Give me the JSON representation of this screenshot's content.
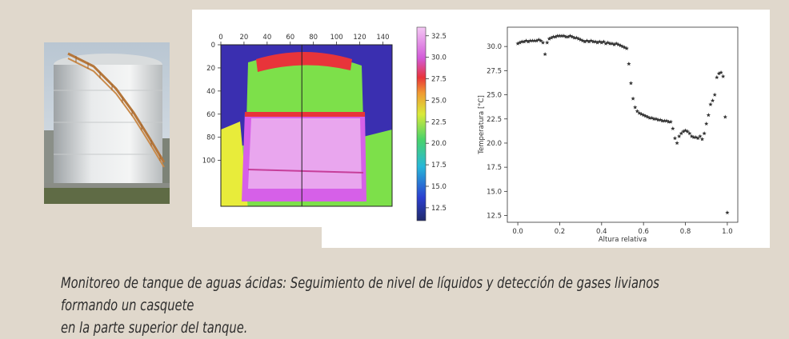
{
  "caption": {
    "line1": "Monitoreo de tanque de aguas ácidas: Seguimiento de nivel de líquidos y detección de gases livianos formando un casquete",
    "line2": "en la parte superior del tanque."
  },
  "thermal_image": {
    "x_ticks": [
      0,
      20,
      40,
      60,
      80,
      100,
      120,
      140
    ],
    "y_ticks": [
      0,
      20,
      40,
      60,
      80,
      100
    ],
    "colorbar_ticks": [
      12.5,
      15.0,
      17.5,
      20.0,
      22.5,
      25.0,
      27.5,
      30.0,
      32.5
    ],
    "colorbar_range": [
      11.0,
      33.5
    ],
    "cursor_line_x": 70,
    "colors": {
      "cold": "#3a2fb0",
      "green": "#7de04a",
      "yellow": "#e8ec3a",
      "red": "#e8343a",
      "magenta": "#d660e8",
      "pink": "#e9a6ee"
    }
  },
  "chart_data": {
    "type": "scatter",
    "xlabel": "Altura relativa",
    "ylabel": "Temperatura [°C]",
    "xlim": [
      -0.05,
      1.05
    ],
    "ylim": [
      11.8,
      32.0
    ],
    "x_ticks": [
      "0.0",
      "0.2",
      "0.4",
      "0.6",
      "0.8",
      "1.0"
    ],
    "y_ticks": [
      "12.5",
      "15.0",
      "17.5",
      "20.0",
      "22.5",
      "25.0",
      "27.5",
      "30.0"
    ],
    "marker": "star",
    "color": "#333333",
    "x": [
      0.0,
      0.01,
      0.02,
      0.03,
      0.04,
      0.05,
      0.06,
      0.07,
      0.08,
      0.09,
      0.1,
      0.11,
      0.12,
      0.13,
      0.14,
      0.15,
      0.16,
      0.17,
      0.18,
      0.19,
      0.2,
      0.21,
      0.22,
      0.23,
      0.24,
      0.25,
      0.26,
      0.27,
      0.28,
      0.29,
      0.3,
      0.31,
      0.32,
      0.33,
      0.34,
      0.35,
      0.36,
      0.37,
      0.38,
      0.39,
      0.4,
      0.41,
      0.42,
      0.43,
      0.44,
      0.45,
      0.46,
      0.47,
      0.48,
      0.49,
      0.5,
      0.51,
      0.52,
      0.53,
      0.54,
      0.55,
      0.56,
      0.57,
      0.58,
      0.59,
      0.6,
      0.61,
      0.62,
      0.63,
      0.64,
      0.65,
      0.66,
      0.67,
      0.68,
      0.69,
      0.7,
      0.71,
      0.72,
      0.73,
      0.74,
      0.75,
      0.76,
      0.77,
      0.78,
      0.79,
      0.8,
      0.81,
      0.82,
      0.83,
      0.84,
      0.85,
      0.86,
      0.87,
      0.88,
      0.89,
      0.9,
      0.91,
      0.92,
      0.93,
      0.94,
      0.95,
      0.96,
      0.97,
      0.98,
      0.99,
      1.0
    ],
    "y": [
      30.3,
      30.4,
      30.5,
      30.5,
      30.6,
      30.5,
      30.6,
      30.6,
      30.6,
      30.6,
      30.7,
      30.6,
      30.4,
      29.2,
      30.4,
      30.8,
      30.9,
      31.0,
      31.0,
      31.1,
      31.1,
      31.1,
      31.1,
      31.0,
      31.0,
      31.1,
      31.0,
      30.9,
      30.9,
      30.8,
      30.7,
      30.6,
      30.5,
      30.6,
      30.5,
      30.6,
      30.5,
      30.5,
      30.4,
      30.5,
      30.4,
      30.5,
      30.3,
      30.4,
      30.3,
      30.3,
      30.2,
      30.3,
      30.2,
      30.1,
      30.0,
      29.9,
      29.8,
      28.2,
      26.2,
      24.6,
      23.7,
      23.3,
      23.1,
      23.0,
      22.9,
      22.8,
      22.7,
      22.6,
      22.6,
      22.5,
      22.5,
      22.4,
      22.4,
      22.3,
      22.3,
      22.3,
      22.2,
      22.2,
      21.5,
      20.5,
      20.0,
      20.7,
      21.0,
      21.2,
      21.3,
      21.2,
      21.0,
      20.7,
      20.6,
      20.6,
      20.5,
      20.7,
      20.4,
      21.0,
      22.0,
      22.9,
      24.0,
      24.4,
      25.0,
      26.8,
      27.2,
      27.3,
      26.9,
      22.7,
      12.8
    ]
  }
}
